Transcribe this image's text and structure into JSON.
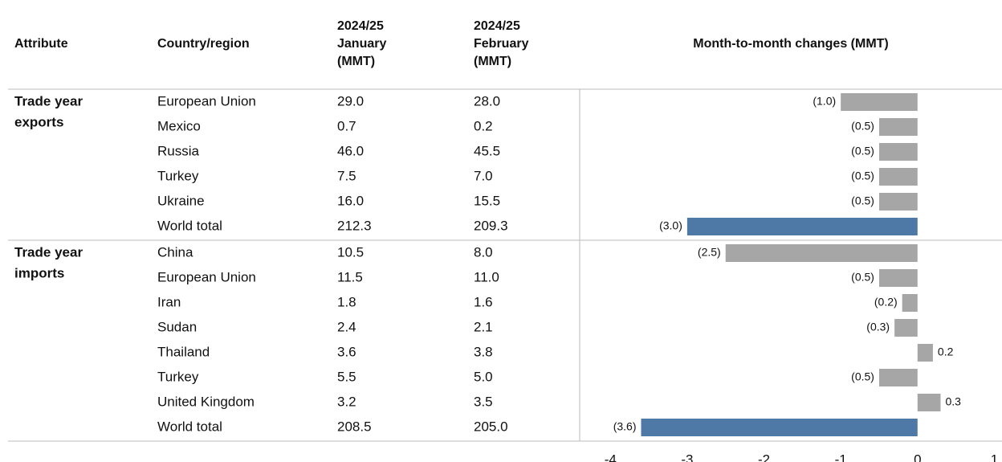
{
  "table": {
    "headers": [
      [
        "Attribute"
      ],
      [
        "Country/region"
      ],
      [
        "2024/25",
        "January",
        "(MMT)"
      ],
      [
        "2024/25",
        "February",
        "(MMT)"
      ],
      [
        "Month-to-month changes (MMT)"
      ]
    ],
    "groups": [
      {
        "attribute": [
          "Trade year",
          "exports"
        ],
        "rows": [
          {
            "country": "European Union",
            "january": "29.0",
            "february": "28.0",
            "change": -1.0,
            "change_label": "(1.0)",
            "color": "#a6a6a6"
          },
          {
            "country": "Mexico",
            "january": "0.7",
            "february": "0.2",
            "change": -0.5,
            "change_label": "(0.5)",
            "color": "#a6a6a6"
          },
          {
            "country": "Russia",
            "january": "46.0",
            "february": "45.5",
            "change": -0.5,
            "change_label": "(0.5)",
            "color": "#a6a6a6"
          },
          {
            "country": "Turkey",
            "january": "7.5",
            "february": "7.0",
            "change": -0.5,
            "change_label": "(0.5)",
            "color": "#a6a6a6"
          },
          {
            "country": "Ukraine",
            "january": "16.0",
            "february": "15.5",
            "change": -0.5,
            "change_label": "(0.5)",
            "color": "#a6a6a6"
          },
          {
            "country": "World total",
            "january": "212.3",
            "february": "209.3",
            "change": -3.0,
            "change_label": "(3.0)",
            "color": "#4e79a7"
          }
        ]
      },
      {
        "attribute": [
          "Trade year",
          "imports"
        ],
        "rows": [
          {
            "country": "China",
            "january": "10.5",
            "february": "8.0",
            "change": -2.5,
            "change_label": "(2.5)",
            "color": "#a6a6a6"
          },
          {
            "country": "European Union",
            "january": "11.5",
            "february": "11.0",
            "change": -0.5,
            "change_label": "(0.5)",
            "color": "#a6a6a6"
          },
          {
            "country": "Iran",
            "january": "1.8",
            "february": "1.6",
            "change": -0.2,
            "change_label": "(0.2)",
            "color": "#a6a6a6"
          },
          {
            "country": "Sudan",
            "january": "2.4",
            "february": "2.1",
            "change": -0.3,
            "change_label": "(0.3)",
            "color": "#a6a6a6"
          },
          {
            "country": "Thailand",
            "january": "3.6",
            "february": "3.8",
            "change": 0.2,
            "change_label": "0.2",
            "color": "#a6a6a6"
          },
          {
            "country": "Turkey",
            "january": "5.5",
            "february": "5.0",
            "change": -0.5,
            "change_label": "(0.5)",
            "color": "#a6a6a6"
          },
          {
            "country": "United Kingdom",
            "january": "3.2",
            "february": "3.5",
            "change": 0.3,
            "change_label": "0.3",
            "color": "#a6a6a6"
          },
          {
            "country": "World total",
            "january": "208.5",
            "february": "205.0",
            "change": -3.6,
            "change_label": "(3.6)",
            "color": "#4e79a7"
          }
        ]
      }
    ],
    "xlim": [
      -4.4,
      1.1
    ],
    "xticks": [
      -4,
      -3,
      -2,
      -1,
      0,
      1
    ]
  }
}
